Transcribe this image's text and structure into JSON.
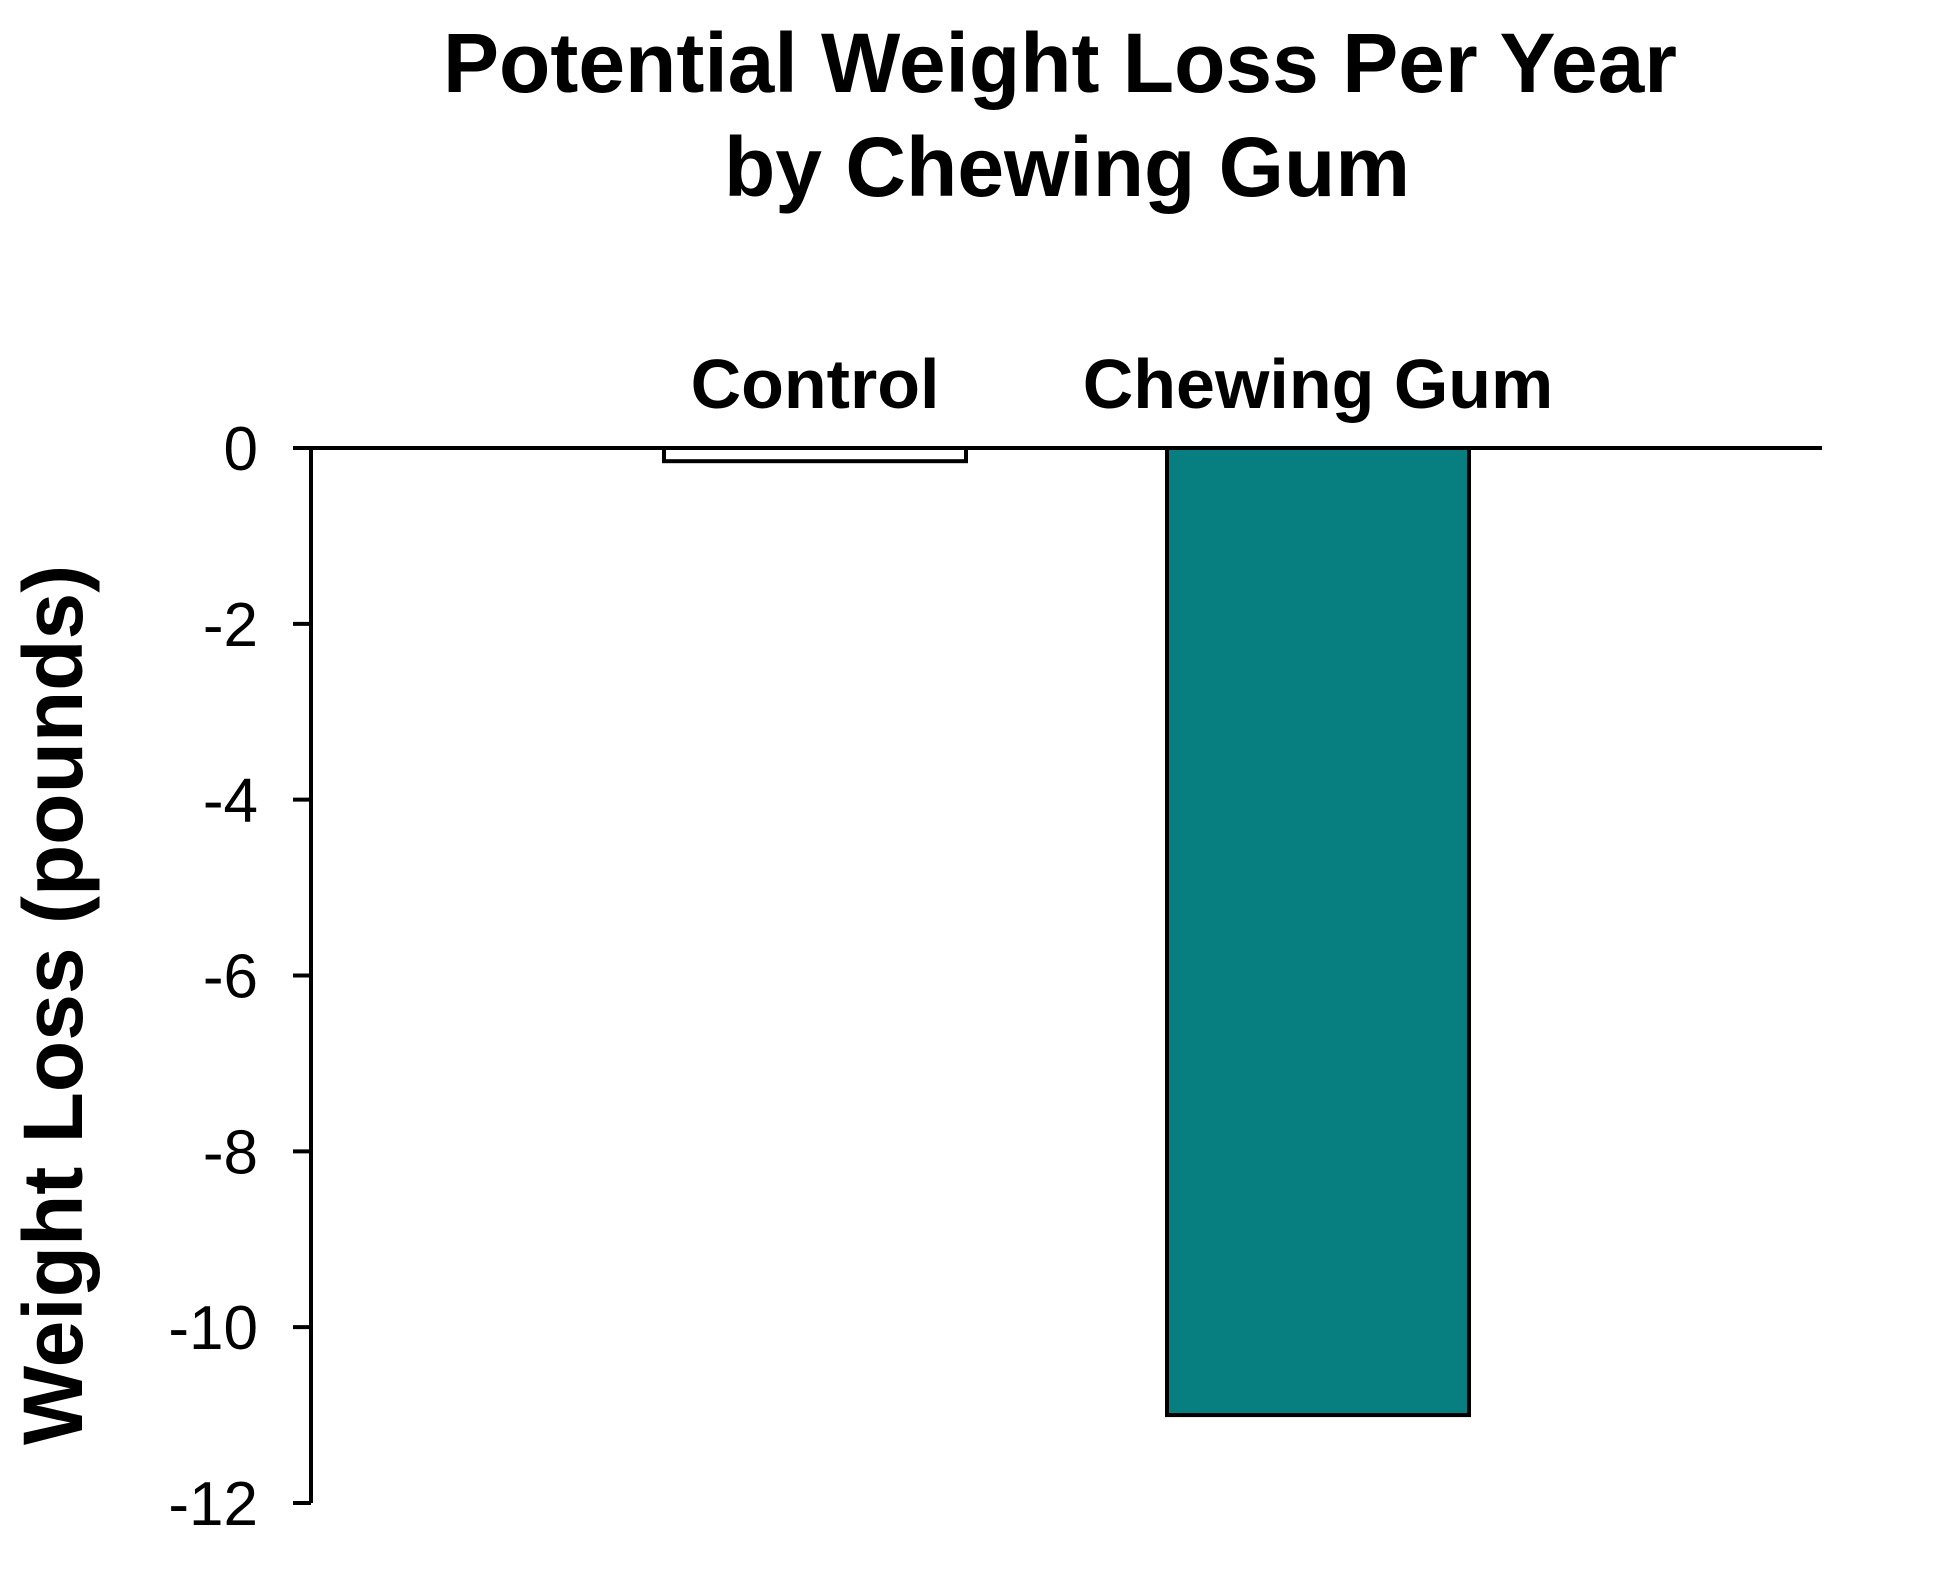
{
  "chart_data": {
    "type": "bar",
    "title_lines": [
      "Potential Weight Loss Per Year",
      "by Chewing Gum"
    ],
    "categories": [
      "Control",
      "Chewing Gum"
    ],
    "values": [
      -0.15,
      -11.0
    ],
    "xlabel": "",
    "ylabel": "Weight Loss (pounds)",
    "ylim": [
      -12,
      0
    ],
    "yticks": [
      0,
      -2,
      -4,
      -6,
      -8,
      -10,
      -12
    ],
    "ytick_labels": [
      "0",
      "-2",
      "-4",
      "-6",
      "-8",
      "-10",
      "-12"
    ],
    "category_label_position": "top",
    "grid": false,
    "legend": "none",
    "bar_colors": [
      "#ffffff",
      "#077e80"
    ],
    "bar_edge_color": "#000000"
  }
}
